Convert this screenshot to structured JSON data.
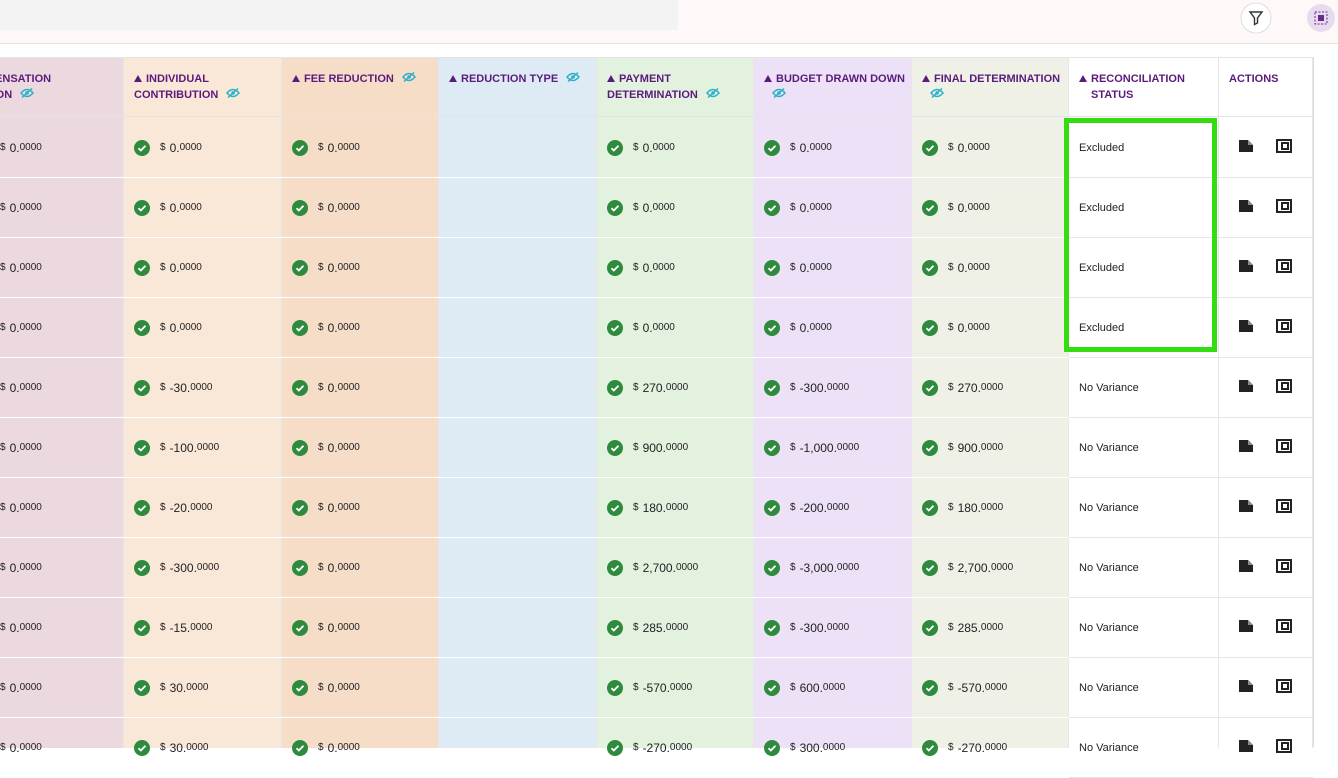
{
  "table": {
    "currency_symbol": "$",
    "headers": [
      [
        "OMPENSATION",
        "UCTION"
      ],
      [
        "INDIVIDUAL",
        "CONTRIBUTION"
      ],
      [
        "FEE REDUCTION"
      ],
      [
        "REDUCTION TYPE"
      ],
      [
        "PAYMENT",
        "DETERMINATION"
      ],
      [
        "BUDGET DRAWN DOWN"
      ],
      [
        "FINAL DETERMINATION"
      ],
      [
        "RECONCILIATION",
        "STATUS"
      ],
      [
        "ACTIONS"
      ]
    ],
    "rows": [
      {
        "amounts": [
          [
            "0.",
            "0000"
          ],
          [
            "0.",
            "0000"
          ],
          [
            "0.",
            "0000"
          ],
          [
            "0.",
            "0000"
          ],
          [
            "0.",
            "0000"
          ],
          [
            "0.",
            "0000"
          ]
        ],
        "status": "Excluded"
      },
      {
        "amounts": [
          [
            "0.",
            "0000"
          ],
          [
            "0.",
            "0000"
          ],
          [
            "0.",
            "0000"
          ],
          [
            "0.",
            "0000"
          ],
          [
            "0.",
            "0000"
          ],
          [
            "0.",
            "0000"
          ]
        ],
        "status": "Excluded"
      },
      {
        "amounts": [
          [
            "0.",
            "0000"
          ],
          [
            "0.",
            "0000"
          ],
          [
            "0.",
            "0000"
          ],
          [
            "0.",
            "0000"
          ],
          [
            "0.",
            "0000"
          ],
          [
            "0.",
            "0000"
          ]
        ],
        "status": "Excluded"
      },
      {
        "amounts": [
          [
            "0.",
            "0000"
          ],
          [
            "0.",
            "0000"
          ],
          [
            "0.",
            "0000"
          ],
          [
            "0.",
            "0000"
          ],
          [
            "0.",
            "0000"
          ],
          [
            "0.",
            "0000"
          ]
        ],
        "status": "Excluded"
      },
      {
        "amounts": [
          [
            "0.",
            "0000"
          ],
          [
            "-30.",
            "0000"
          ],
          [
            "0.",
            "0000"
          ],
          [
            "270.",
            "0000"
          ],
          [
            "-300.",
            "0000"
          ],
          [
            "270.",
            "0000"
          ]
        ],
        "status": "No Variance"
      },
      {
        "amounts": [
          [
            "0.",
            "0000"
          ],
          [
            "-100.",
            "0000"
          ],
          [
            "0.",
            "0000"
          ],
          [
            "900.",
            "0000"
          ],
          [
            "-1,000.",
            "0000"
          ],
          [
            "900.",
            "0000"
          ]
        ],
        "status": "No Variance"
      },
      {
        "amounts": [
          [
            "0.",
            "0000"
          ],
          [
            "-20.",
            "0000"
          ],
          [
            "0.",
            "0000"
          ],
          [
            "180.",
            "0000"
          ],
          [
            "-200.",
            "0000"
          ],
          [
            "180.",
            "0000"
          ]
        ],
        "status": "No Variance"
      },
      {
        "amounts": [
          [
            "0.",
            "0000"
          ],
          [
            "-300.",
            "0000"
          ],
          [
            "0.",
            "0000"
          ],
          [
            "2,700.",
            "0000"
          ],
          [
            "-3,000.",
            "0000"
          ],
          [
            "2,700.",
            "0000"
          ]
        ],
        "status": "No Variance"
      },
      {
        "amounts": [
          [
            "0.",
            "0000"
          ],
          [
            "-15.",
            "0000"
          ],
          [
            "0.",
            "0000"
          ],
          [
            "285.",
            "0000"
          ],
          [
            "-300.",
            "0000"
          ],
          [
            "285.",
            "0000"
          ]
        ],
        "status": "No Variance"
      },
      {
        "amounts": [
          [
            "0.",
            "0000"
          ],
          [
            "30.",
            "0000"
          ],
          [
            "0.",
            "0000"
          ],
          [
            "-570.",
            "0000"
          ],
          [
            "600.",
            "0000"
          ],
          [
            "-570.",
            "0000"
          ]
        ],
        "status": "No Variance"
      },
      {
        "amounts": [
          [
            "0.",
            "0000"
          ],
          [
            "30.",
            "0000"
          ],
          [
            "0.",
            "0000"
          ],
          [
            "-270.",
            "0000"
          ],
          [
            "300.",
            "0000"
          ],
          [
            "-270.",
            "0000"
          ]
        ],
        "status": "No Variance"
      }
    ]
  }
}
